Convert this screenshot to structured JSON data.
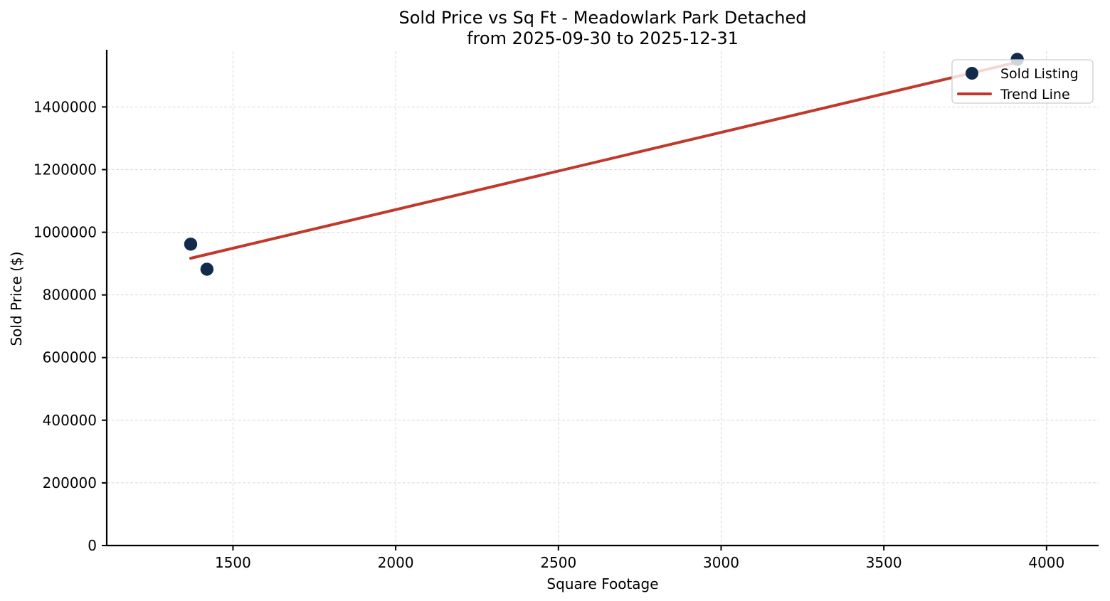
{
  "chart_data": {
    "type": "scatter",
    "title": "Sold Price vs Sq Ft - Meadowlark Park Detached",
    "subtitle": "from 2025-09-30 to 2025-12-31",
    "xlabel": "Square Footage",
    "ylabel": "Sold Price ($)",
    "xlim": [
      1112,
      4160
    ],
    "ylim": [
      0,
      1578000
    ],
    "xticks": [
      1500,
      2000,
      2500,
      3000,
      3500,
      4000
    ],
    "yticks": [
      0,
      200000,
      400000,
      600000,
      800000,
      1000000,
      1200000,
      1400000
    ],
    "grid": true,
    "grid_color": "#d8d8d8",
    "axis_color": "#000000",
    "legend_position": "upper right",
    "series": [
      {
        "name": "Trend Line",
        "type": "line",
        "color": "#c0392b",
        "points": [
          [
            1370,
            917000
          ],
          [
            3910,
            1543000
          ]
        ]
      },
      {
        "name": "Sold Listing",
        "type": "scatter",
        "color": "#122b4d",
        "marker": "circle",
        "points": [
          [
            1370,
            962000
          ],
          [
            1420,
            882000
          ],
          [
            3910,
            1552000
          ]
        ]
      }
    ],
    "legend": [
      {
        "label": "Sold Listing",
        "marker": "circle",
        "color": "#122b4d"
      },
      {
        "label": "Trend Line",
        "marker": "line",
        "color": "#c0392b"
      }
    ]
  }
}
